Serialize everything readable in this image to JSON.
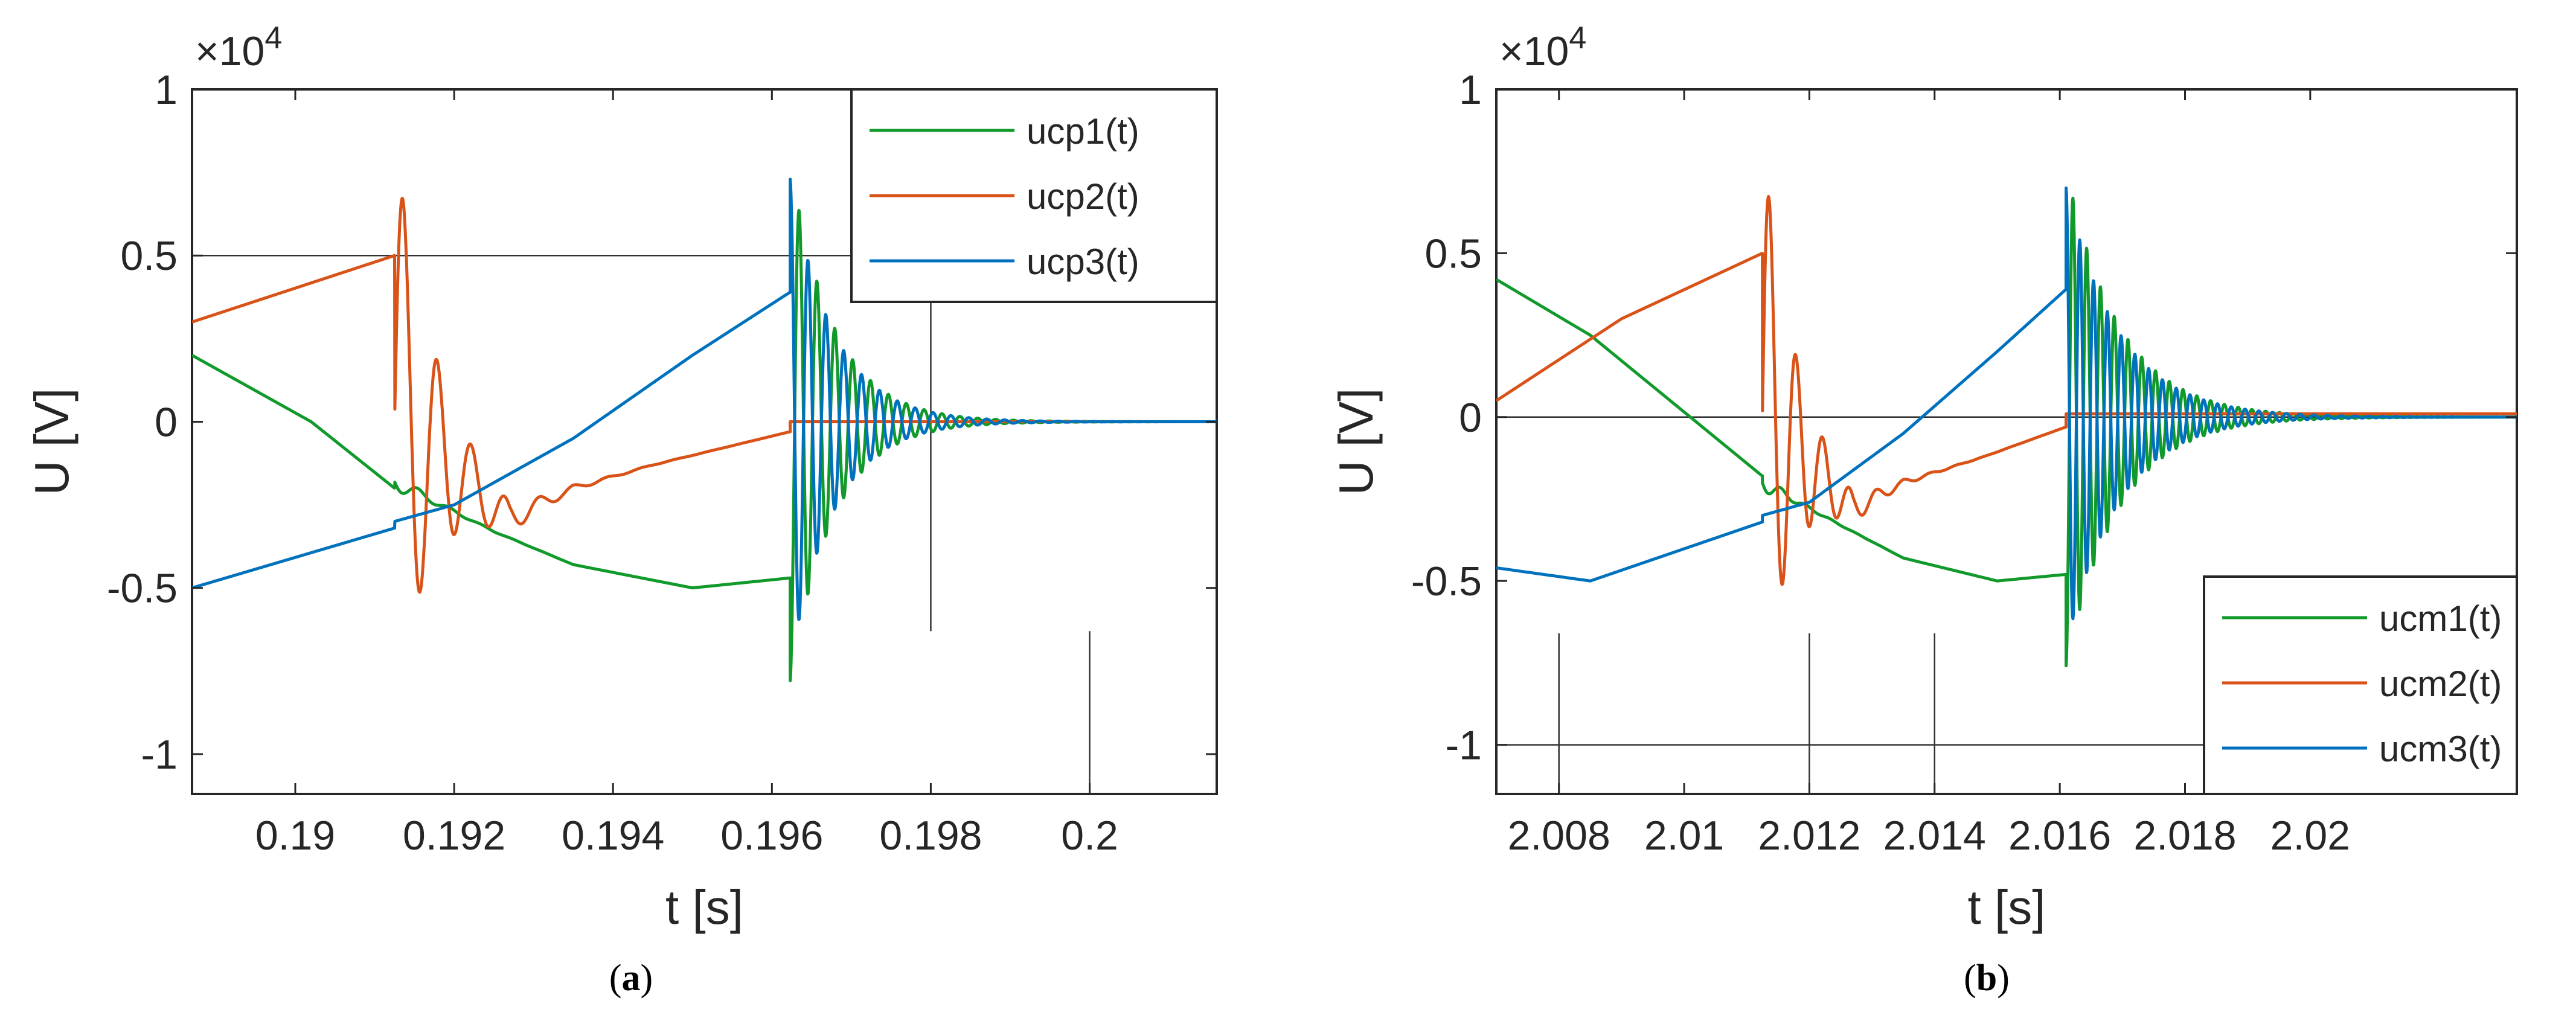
{
  "chart_data": [
    {
      "type": "line",
      "panel": "a",
      "caption_label": "a",
      "title": "",
      "xlabel": "t [s]",
      "ylabel": "U [V]",
      "y_exponent_label": "×10",
      "y_exponent_power": "4",
      "xlim": [
        0.1887,
        0.2016
      ],
      "ylim": [
        -1.12,
        1.0
      ],
      "xticks": [
        0.19,
        0.192,
        0.194,
        0.196,
        0.198,
        0.2
      ],
      "xtick_labels": [
        "0.19",
        "0.192",
        "0.194",
        "0.196",
        "0.198",
        "0.2"
      ],
      "yticks": [
        1,
        0.5,
        0,
        -0.5,
        -1
      ],
      "ytick_labels": [
        "1",
        "0.5",
        "0",
        "-0.5",
        "-1"
      ],
      "ref_hlines": [
        {
          "y": 0.5,
          "x0": 0.1887,
          "x1": 0.2016
        }
      ],
      "ref_vlines": [
        {
          "x": 0.198,
          "y0": -0.63,
          "y1": 1.0
        },
        {
          "x": 0.2,
          "y0": -1.12,
          "y1": -0.63
        }
      ],
      "legend_position": "top-right",
      "events": {
        "t_break": 0.19125,
        "t_clear": 0.19623,
        "t_end": 0.2016
      },
      "series": [
        {
          "name": "ucp1(t)",
          "color": "#119a2b",
          "pre": [
            [
              0.1887,
              0.2
            ],
            [
              0.1902,
              0.0
            ],
            [
              0.19125,
              -0.2
            ]
          ],
          "mid": [
            [
              0.19125,
              -0.18
            ],
            [
              0.1925,
              -0.33
            ],
            [
              0.1935,
              -0.43
            ],
            [
              0.195,
              -0.5
            ],
            [
              0.19623,
              -0.47
            ]
          ],
          "burst": [
            [
              0.19125,
              -0.03,
              0.0004,
              0.00041,
              0.0
            ]
          ],
          "clear_osc": {
            "amp": -0.78,
            "period": 0.000225,
            "tau": 0.00055,
            "final": 0.0
          }
        },
        {
          "name": "ucp2(t)",
          "color": "#d95319",
          "pre": [
            [
              0.1887,
              0.3
            ],
            [
              0.19125,
              0.5
            ]
          ],
          "mid": [
            [
              0.19125,
              0.0
            ],
            [
              0.1927,
              -0.29
            ],
            [
              0.1935,
              -0.2
            ],
            [
              0.1945,
              -0.13
            ],
            [
              0.19623,
              -0.03
            ]
          ],
          "burst": [
            [
              0.19125,
              0.85,
              0.00043,
              0.0005,
              0.0
            ],
            [
              0.19125,
              0.0,
              0.0005,
              0.0005,
              0.0
            ]
          ],
          "clear_osc": {
            "amp": 0.0,
            "period": 0.000225,
            "tau": 0.00055,
            "final": 0.0
          }
        },
        {
          "name": "ucp3(t)",
          "color": "#0072bd",
          "pre": [
            [
              0.1887,
              -0.5
            ],
            [
              0.19125,
              -0.32
            ]
          ],
          "mid": [
            [
              0.19125,
              -0.3
            ],
            [
              0.192,
              -0.25
            ],
            [
              0.1935,
              -0.05
            ],
            [
              0.195,
              0.2
            ],
            [
              0.19623,
              0.39
            ]
          ],
          "burst": [
            [
              0.19125,
              0.0,
              0.0004,
              0.0005,
              0.0
            ]
          ],
          "clear_osc": {
            "amp": 0.73,
            "period": 0.000225,
            "tau": 0.00055,
            "final": 0.0
          }
        }
      ]
    },
    {
      "type": "line",
      "panel": "b",
      "caption_label": "b",
      "title": "",
      "xlabel": "t [s]",
      "ylabel": "U [V]",
      "y_exponent_label": "×10",
      "y_exponent_power": "4",
      "xlim": [
        2.007,
        2.0233
      ],
      "ylim": [
        -1.15,
        1.0
      ],
      "xticks": [
        2.008,
        2.01,
        2.012,
        2.014,
        2.016,
        2.018,
        2.02
      ],
      "xtick_labels": [
        "2.008",
        "2.01",
        "2.012",
        "2.014",
        "2.016",
        "2.018",
        "2.02"
      ],
      "yticks": [
        1,
        0.5,
        0,
        -0.5,
        -1
      ],
      "ytick_labels": [
        "1",
        "0.5",
        "0",
        "-0.5",
        "-1"
      ],
      "ref_hlines": [
        {
          "y": 0.0,
          "x0": 2.007,
          "x1": 2.0233
        },
        {
          "y": -1.0,
          "x0": 2.007,
          "x1": 2.0233
        }
      ],
      "ref_vlines": [
        {
          "x": 2.008,
          "y0": -1.15,
          "y1": -0.66
        },
        {
          "x": 2.012,
          "y0": -1.15,
          "y1": -0.66
        },
        {
          "x": 2.014,
          "y0": -1.15,
          "y1": -0.66
        }
      ],
      "legend_position": "bottom-right",
      "events": {
        "t_break": 2.01125,
        "t_clear": 2.0161,
        "t_end": 2.0233
      },
      "series": [
        {
          "name": "ucm1(t)",
          "color": "#119a2b",
          "pre": [
            [
              2.007,
              0.42
            ],
            [
              2.0085,
              0.25
            ],
            [
              2.01125,
              -0.18
            ]
          ],
          "mid": [
            [
              2.01125,
              -0.2
            ],
            [
              2.0125,
              -0.33
            ],
            [
              2.0135,
              -0.43
            ],
            [
              2.015,
              -0.5
            ],
            [
              2.0161,
              -0.48
            ]
          ],
          "burst": [
            [
              2.01125,
              -0.03,
              0.0004,
              0.00041,
              0.0
            ]
          ],
          "clear_osc": {
            "amp": -0.76,
            "period": 0.00022,
            "tau": 0.00085,
            "final": 0.0
          }
        },
        {
          "name": "ucm2(t)",
          "color": "#d95319",
          "pre": [
            [
              2.007,
              0.05
            ],
            [
              2.009,
              0.3
            ],
            [
              2.01125,
              0.5
            ]
          ],
          "mid": [
            [
              2.01125,
              0.0
            ],
            [
              2.0127,
              -0.28
            ],
            [
              2.0135,
              -0.2
            ],
            [
              2.0148,
              -0.12
            ],
            [
              2.0161,
              -0.03
            ]
          ],
          "burst": [
            [
              2.01125,
              0.85,
              0.00043,
              0.0005,
              0.0
            ]
          ],
          "clear_osc": {
            "amp": 0.0,
            "period": 0.00022,
            "tau": 0.00085,
            "final": 0.01
          }
        },
        {
          "name": "ucm3(t)",
          "color": "#0072bd",
          "pre": [
            [
              2.007,
              -0.46
            ],
            [
              2.0085,
              -0.5
            ],
            [
              2.01125,
              -0.32
            ]
          ],
          "mid": [
            [
              2.01125,
              -0.3
            ],
            [
              2.012,
              -0.26
            ],
            [
              2.0135,
              -0.05
            ],
            [
              2.015,
              0.2
            ],
            [
              2.0161,
              0.39
            ]
          ],
          "burst": [
            [
              2.01125,
              0.0,
              0.0004,
              0.0005,
              0.0
            ]
          ],
          "clear_osc": {
            "amp": 0.7,
            "period": 0.00022,
            "tau": 0.00085,
            "final": 0.0
          }
        }
      ]
    }
  ]
}
